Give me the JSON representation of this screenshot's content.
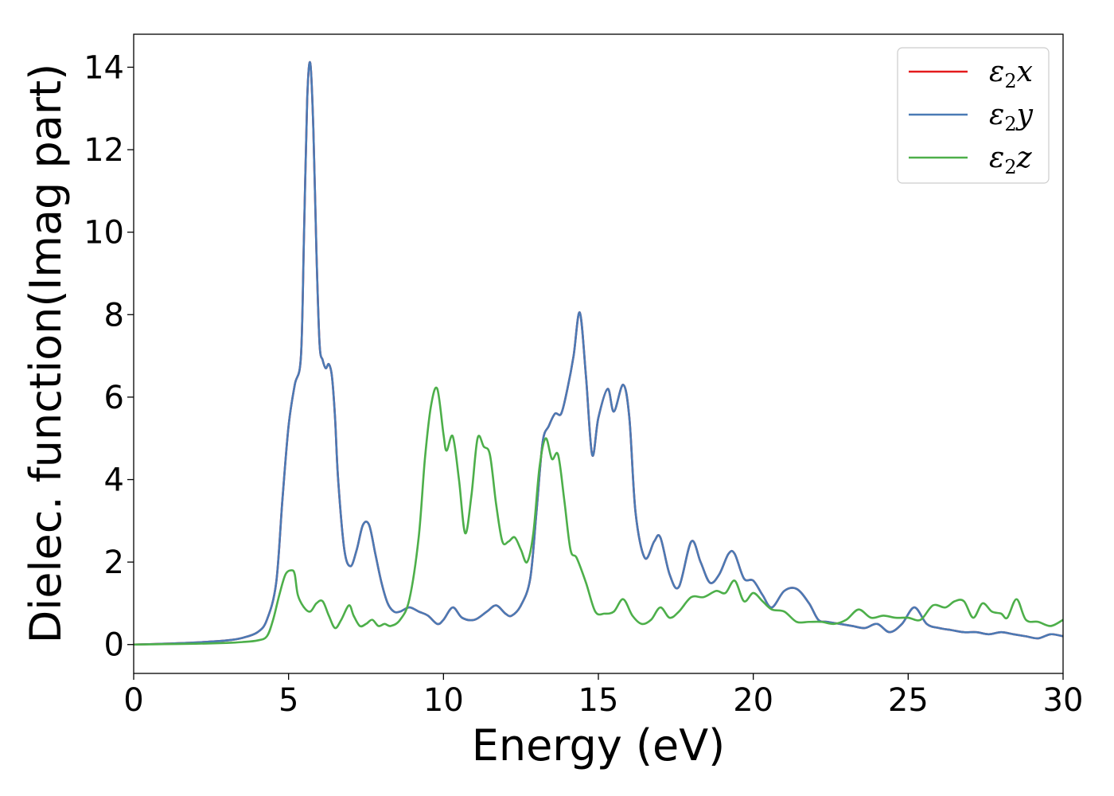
{
  "chart_data": {
    "type": "line",
    "xlabel": "Energy (eV)",
    "ylabel": "Dielec. function(Imag part)",
    "xlim": [
      0,
      30
    ],
    "ylim": [
      -0.7,
      14.8
    ],
    "xticks": [
      0,
      5,
      10,
      15,
      20,
      25,
      30
    ],
    "yticks": [
      0,
      2,
      4,
      6,
      8,
      10,
      12,
      14
    ],
    "xtick_labels": [
      "0",
      "5",
      "10",
      "15",
      "20",
      "25",
      "30"
    ],
    "ytick_labels": [
      "0",
      "2",
      "4",
      "6",
      "8",
      "10",
      "12",
      "14"
    ],
    "grid": false,
    "legend_position": "top-right",
    "series": [
      {
        "name": "ε2x",
        "label_main": "ε",
        "label_sub": "2",
        "label_tail": "x",
        "color": "#e41a1c",
        "x": [
          0,
          1,
          2,
          3,
          3.5,
          4,
          4.3,
          4.6,
          4.8,
          5,
          5.2,
          5.4,
          5.5,
          5.6,
          5.7,
          5.8,
          5.9,
          6,
          6.1,
          6.2,
          6.3,
          6.4,
          6.5,
          6.6,
          6.8,
          7,
          7.2,
          7.4,
          7.6,
          7.8,
          8,
          8.2,
          8.4,
          8.6,
          8.9,
          9.2,
          9.5,
          9.8,
          10,
          10.3,
          10.6,
          11,
          11.4,
          11.7,
          12,
          12.2,
          12.5,
          12.8,
          13,
          13.2,
          13.4,
          13.6,
          13.8,
          14,
          14.2,
          14.4,
          14.6,
          14.8,
          15,
          15.3,
          15.5,
          15.8,
          16,
          16.2,
          16.5,
          16.8,
          17,
          17.3,
          17.6,
          18,
          18.3,
          18.6,
          18.9,
          19.2,
          19.4,
          19.7,
          20,
          20.3,
          20.6,
          21,
          21.4,
          21.8,
          22.1,
          22.4,
          22.8,
          23.2,
          23.6,
          24,
          24.4,
          24.8,
          25.2,
          25.6,
          26,
          26.4,
          26.8,
          27.2,
          27.6,
          28,
          28.4,
          28.8,
          29.2,
          29.6,
          30
        ],
        "y": [
          0,
          0.02,
          0.05,
          0.1,
          0.16,
          0.3,
          0.6,
          1.5,
          3.5,
          5.3,
          6.3,
          7,
          10,
          13.2,
          14.1,
          12.5,
          9.5,
          7.3,
          6.9,
          6.7,
          6.8,
          6.5,
          5.5,
          4,
          2.3,
          1.9,
          2.3,
          2.9,
          2.9,
          2.2,
          1.5,
          1,
          0.8,
          0.8,
          0.9,
          0.8,
          0.7,
          0.5,
          0.6,
          0.9,
          0.65,
          0.6,
          0.8,
          0.95,
          0.75,
          0.7,
          0.95,
          1.6,
          3.2,
          4.9,
          5.3,
          5.6,
          5.6,
          6.2,
          7,
          8.05,
          6.5,
          4.6,
          5.5,
          6.2,
          5.65,
          6.3,
          5.5,
          3.2,
          2.1,
          2.5,
          2.6,
          1.7,
          1.4,
          2.5,
          2,
          1.5,
          1.7,
          2.2,
          2.2,
          1.6,
          1.55,
          1.2,
          0.9,
          1.3,
          1.35,
          1,
          0.6,
          0.55,
          0.5,
          0.45,
          0.4,
          0.5,
          0.3,
          0.5,
          0.9,
          0.5,
          0.4,
          0.35,
          0.3,
          0.3,
          0.25,
          0.3,
          0.25,
          0.2,
          0.15,
          0.25,
          0.2
        ]
      },
      {
        "name": "ε2y",
        "label_main": "ε",
        "label_sub": "2",
        "label_tail": "y",
        "color": "#4a7ab5",
        "x": [
          0,
          1,
          2,
          3,
          3.5,
          4,
          4.3,
          4.6,
          4.8,
          5,
          5.2,
          5.4,
          5.5,
          5.6,
          5.7,
          5.8,
          5.9,
          6,
          6.1,
          6.2,
          6.3,
          6.4,
          6.5,
          6.6,
          6.8,
          7,
          7.2,
          7.4,
          7.6,
          7.8,
          8,
          8.2,
          8.4,
          8.6,
          8.9,
          9.2,
          9.5,
          9.8,
          10,
          10.3,
          10.6,
          11,
          11.4,
          11.7,
          12,
          12.2,
          12.5,
          12.8,
          13,
          13.2,
          13.4,
          13.6,
          13.8,
          14,
          14.2,
          14.4,
          14.6,
          14.8,
          15,
          15.3,
          15.5,
          15.8,
          16,
          16.2,
          16.5,
          16.8,
          17,
          17.3,
          17.6,
          18,
          18.3,
          18.6,
          18.9,
          19.2,
          19.4,
          19.7,
          20,
          20.3,
          20.6,
          21,
          21.4,
          21.8,
          22.1,
          22.4,
          22.8,
          23.2,
          23.6,
          24,
          24.4,
          24.8,
          25.2,
          25.6,
          26,
          26.4,
          26.8,
          27.2,
          27.6,
          28,
          28.4,
          28.8,
          29.2,
          29.6,
          30
        ],
        "y": [
          0,
          0.02,
          0.05,
          0.1,
          0.16,
          0.3,
          0.6,
          1.5,
          3.5,
          5.3,
          6.3,
          7,
          10,
          13.2,
          14.1,
          12.5,
          9.5,
          7.3,
          6.9,
          6.7,
          6.8,
          6.5,
          5.5,
          4,
          2.3,
          1.9,
          2.3,
          2.9,
          2.9,
          2.2,
          1.5,
          1,
          0.8,
          0.8,
          0.9,
          0.8,
          0.7,
          0.5,
          0.6,
          0.9,
          0.65,
          0.6,
          0.8,
          0.95,
          0.75,
          0.7,
          0.95,
          1.6,
          3.2,
          4.9,
          5.3,
          5.6,
          5.6,
          6.2,
          7,
          8.05,
          6.5,
          4.6,
          5.5,
          6.2,
          5.65,
          6.3,
          5.5,
          3.2,
          2.1,
          2.5,
          2.6,
          1.7,
          1.4,
          2.5,
          2,
          1.5,
          1.7,
          2.2,
          2.2,
          1.6,
          1.55,
          1.2,
          0.9,
          1.3,
          1.35,
          1,
          0.6,
          0.55,
          0.5,
          0.45,
          0.4,
          0.5,
          0.3,
          0.5,
          0.9,
          0.5,
          0.4,
          0.35,
          0.3,
          0.3,
          0.25,
          0.3,
          0.25,
          0.2,
          0.15,
          0.25,
          0.2
        ]
      },
      {
        "name": "ε2z",
        "label_main": "ε",
        "label_sub": "2",
        "label_tail": "z",
        "color": "#4daf4a",
        "x": [
          0,
          1,
          2,
          3,
          3.5,
          4,
          4.3,
          4.5,
          4.7,
          4.9,
          5.1,
          5.2,
          5.3,
          5.5,
          5.7,
          5.9,
          6.1,
          6.3,
          6.5,
          6.7,
          6.95,
          7.1,
          7.3,
          7.5,
          7.7,
          7.9,
          8.1,
          8.3,
          8.6,
          8.9,
          9.2,
          9.4,
          9.6,
          9.8,
          10,
          10.1,
          10.3,
          10.5,
          10.7,
          10.9,
          11.1,
          11.3,
          11.5,
          11.7,
          11.9,
          12.1,
          12.3,
          12.5,
          12.7,
          12.9,
          13.1,
          13.3,
          13.5,
          13.7,
          13.9,
          14.1,
          14.3,
          14.6,
          14.9,
          15.2,
          15.5,
          15.8,
          16.1,
          16.4,
          16.7,
          17,
          17.3,
          17.6,
          18,
          18.4,
          18.8,
          19.1,
          19.4,
          19.7,
          20,
          20.3,
          20.6,
          21,
          21.4,
          21.8,
          22.2,
          22.6,
          23,
          23.4,
          23.8,
          24.2,
          24.6,
          25,
          25.4,
          25.8,
          26.2,
          26.5,
          26.8,
          27.1,
          27.4,
          27.7,
          28,
          28.2,
          28.5,
          28.8,
          29.2,
          29.6,
          30
        ],
        "y": [
          0,
          0.01,
          0.02,
          0.04,
          0.06,
          0.1,
          0.2,
          0.6,
          1.2,
          1.7,
          1.8,
          1.7,
          1.2,
          0.9,
          0.8,
          1.0,
          1.05,
          0.7,
          0.4,
          0.6,
          0.95,
          0.7,
          0.45,
          0.5,
          0.6,
          0.45,
          0.5,
          0.45,
          0.6,
          1.1,
          2.6,
          4.5,
          5.8,
          6.2,
          5.1,
          4.7,
          5.05,
          4.0,
          2.7,
          3.6,
          5.0,
          4.8,
          4.6,
          3.4,
          2.5,
          2.5,
          2.6,
          2.3,
          2.0,
          2.7,
          4.3,
          5.0,
          4.5,
          4.6,
          3.5,
          2.3,
          2.1,
          1.5,
          0.8,
          0.75,
          0.8,
          1.1,
          0.7,
          0.5,
          0.6,
          0.9,
          0.65,
          0.8,
          1.15,
          1.15,
          1.3,
          1.25,
          1.55,
          1.05,
          1.25,
          1.05,
          0.85,
          0.8,
          0.55,
          0.55,
          0.55,
          0.5,
          0.6,
          0.85,
          0.65,
          0.7,
          0.65,
          0.65,
          0.6,
          0.95,
          0.9,
          1.05,
          1.05,
          0.65,
          1.0,
          0.8,
          0.75,
          0.65,
          1.1,
          0.6,
          0.55,
          0.45,
          0.6
        ]
      }
    ]
  }
}
